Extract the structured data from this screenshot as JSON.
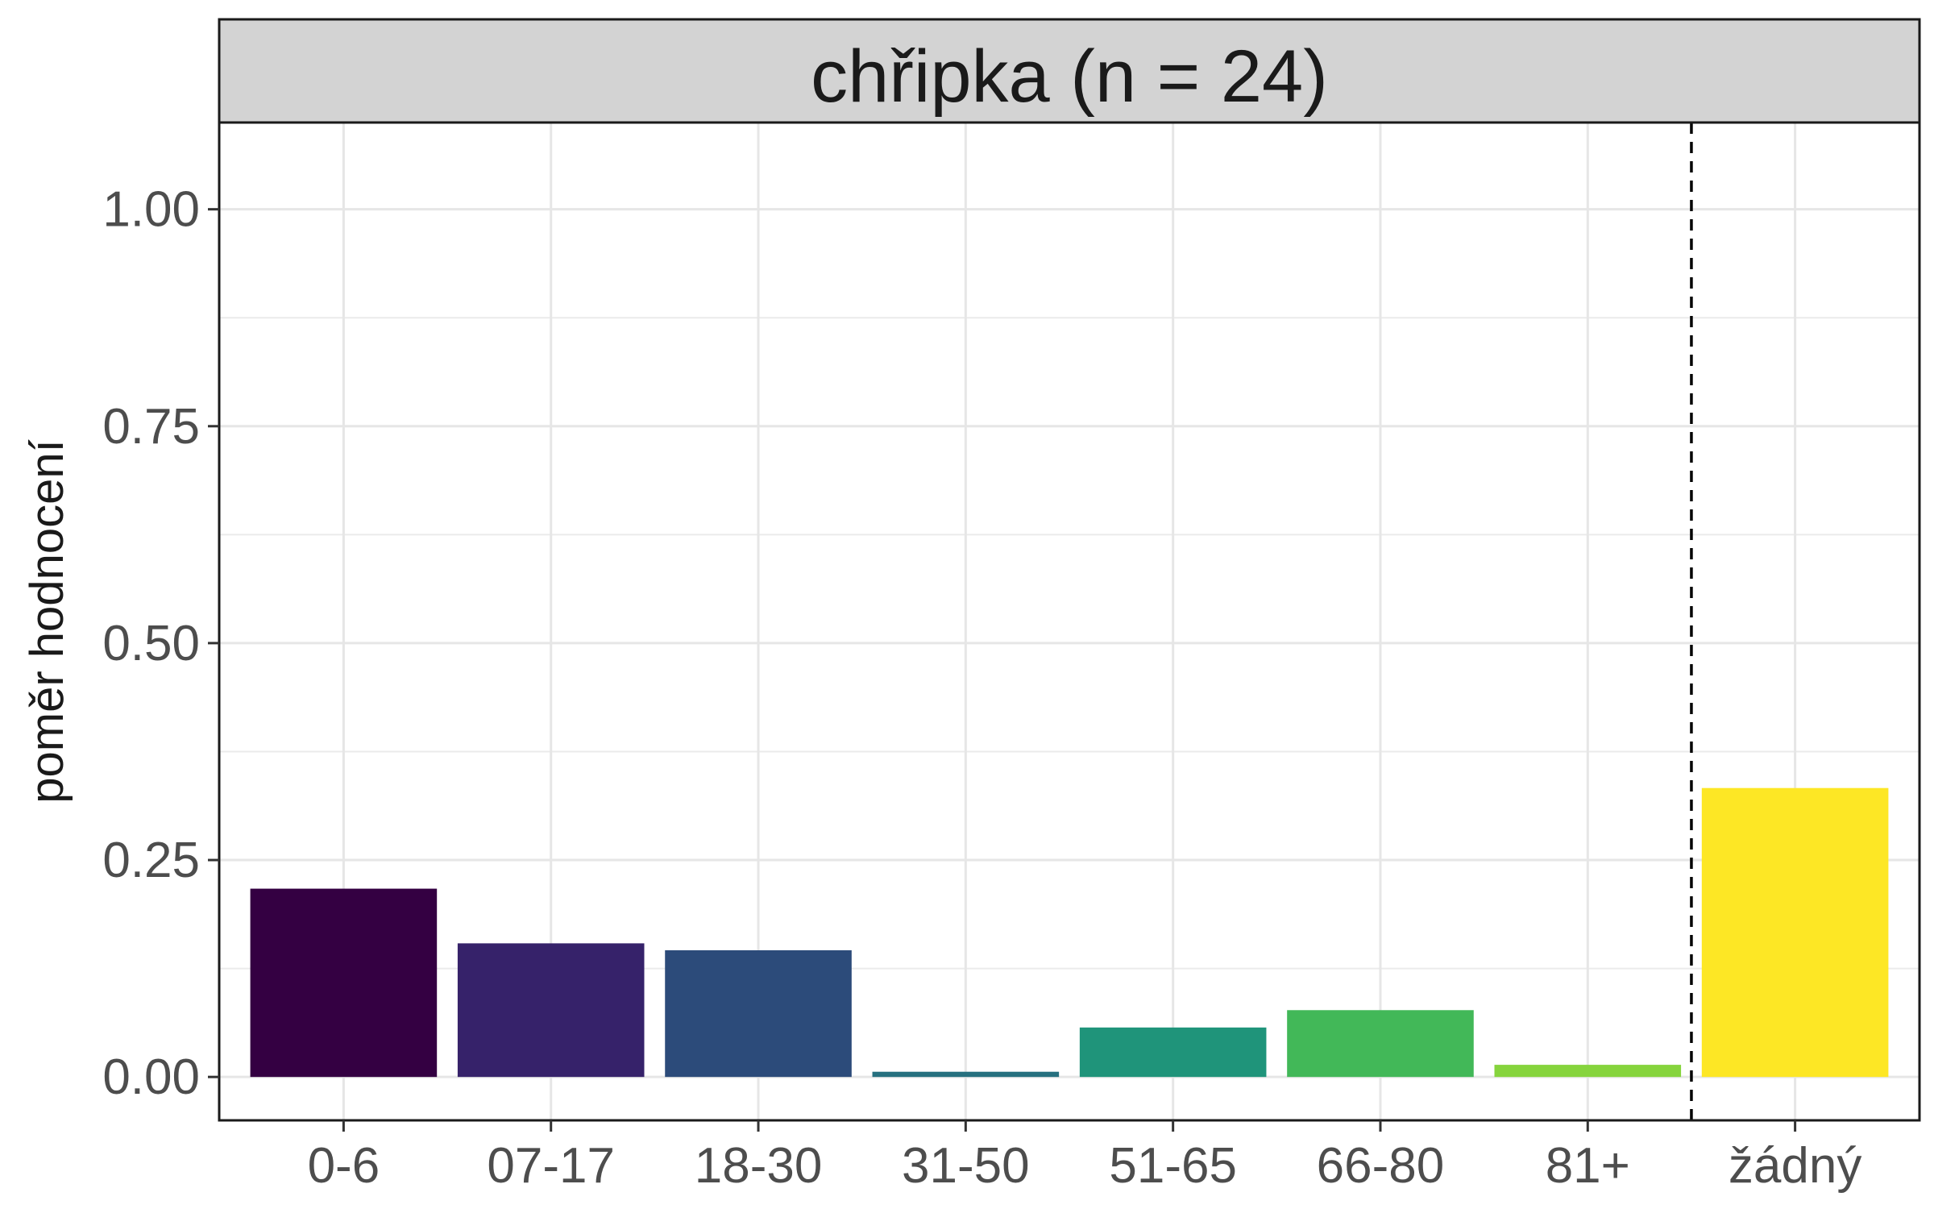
{
  "chart_data": {
    "type": "bar",
    "title": "chřipka (n = 24)",
    "xlabel": "",
    "ylabel": "poměr hodnocení",
    "categories": [
      "0-6",
      "07-17",
      "18-30",
      "31-50",
      "51-65",
      "66-80",
      "81+",
      "žádný"
    ],
    "values": [
      0.217,
      0.154,
      0.146,
      0.006,
      0.057,
      0.077,
      0.014,
      0.333
    ],
    "colors": [
      "#340042",
      "#36226A",
      "#2C4B7A",
      "#26707F",
      "#1F947A",
      "#42B858",
      "#86D43D",
      "#FDE725"
    ],
    "ylim": [
      -0.05,
      1.1
    ],
    "yticks": [
      0.0,
      0.25,
      0.5,
      0.75,
      1.0
    ],
    "ytick_labels": [
      "0.00",
      "0.25",
      "0.50",
      "0.75",
      "1.00"
    ],
    "grid": true,
    "separator_after_category": "81+",
    "separator_style": "dashed"
  }
}
